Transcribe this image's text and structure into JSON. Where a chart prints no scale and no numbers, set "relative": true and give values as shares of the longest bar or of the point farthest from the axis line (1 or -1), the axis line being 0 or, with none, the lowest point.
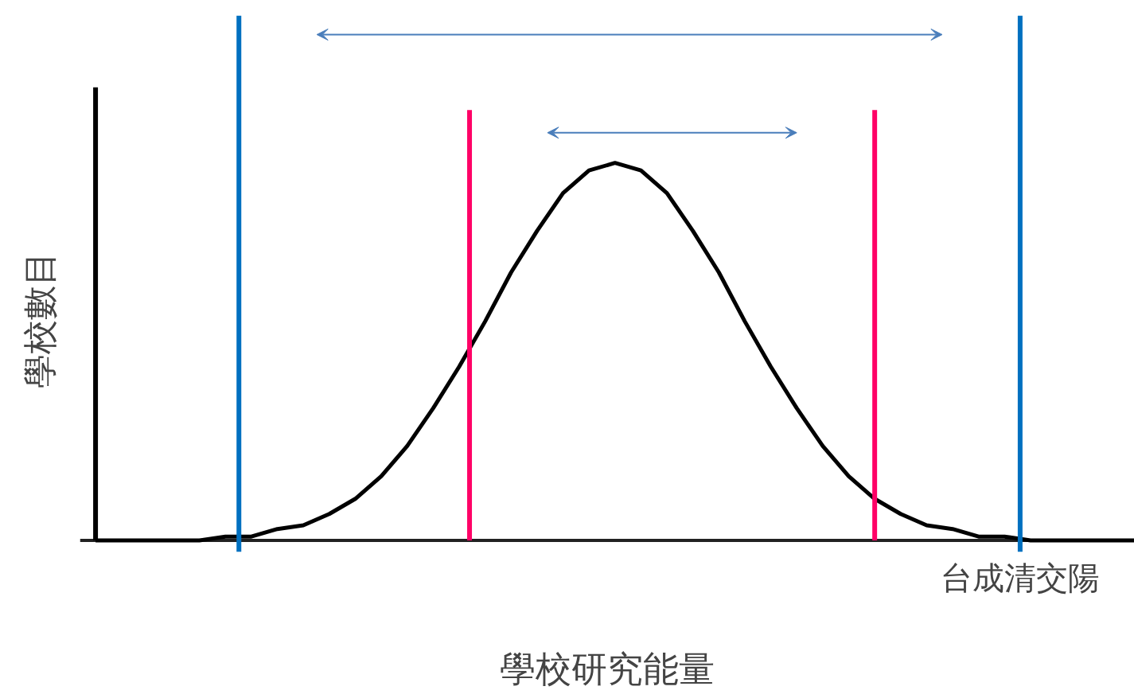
{
  "chart_data": {
    "type": "line",
    "relative": true,
    "xlabel": "學校研究能量",
    "ylabel": "學校數目",
    "tick_labels": false,
    "grid": false,
    "marker": "none",
    "line_style": "solid",
    "categories": [
      null,
      null,
      null,
      null,
      null,
      null,
      null,
      null,
      null,
      null,
      null,
      null,
      null,
      null,
      null,
      null,
      null,
      null,
      null,
      null,
      null,
      null,
      null,
      null,
      null,
      null,
      null,
      null,
      null,
      null,
      null,
      null,
      null,
      null,
      null,
      null,
      null,
      null,
      null,
      null,
      null
    ],
    "series": [
      {
        "color": "#000000",
        "values": [
          0.0,
          0.0,
          0.0,
          0.0,
          0.0,
          0.01,
          0.01,
          0.03,
          0.04,
          0.07,
          0.11,
          0.17,
          0.25,
          0.35,
          0.46,
          0.58,
          0.71,
          0.82,
          0.92,
          0.98,
          1.0,
          0.98,
          0.92,
          0.82,
          0.71,
          0.58,
          0.46,
          0.35,
          0.25,
          0.17,
          0.11,
          0.07,
          0.04,
          0.03,
          0.01,
          0.01,
          0.0,
          0.0,
          0.0,
          0.0,
          0.0
        ]
      }
    ],
    "annotations": [
      "台成清交陽"
    ]
  }
}
